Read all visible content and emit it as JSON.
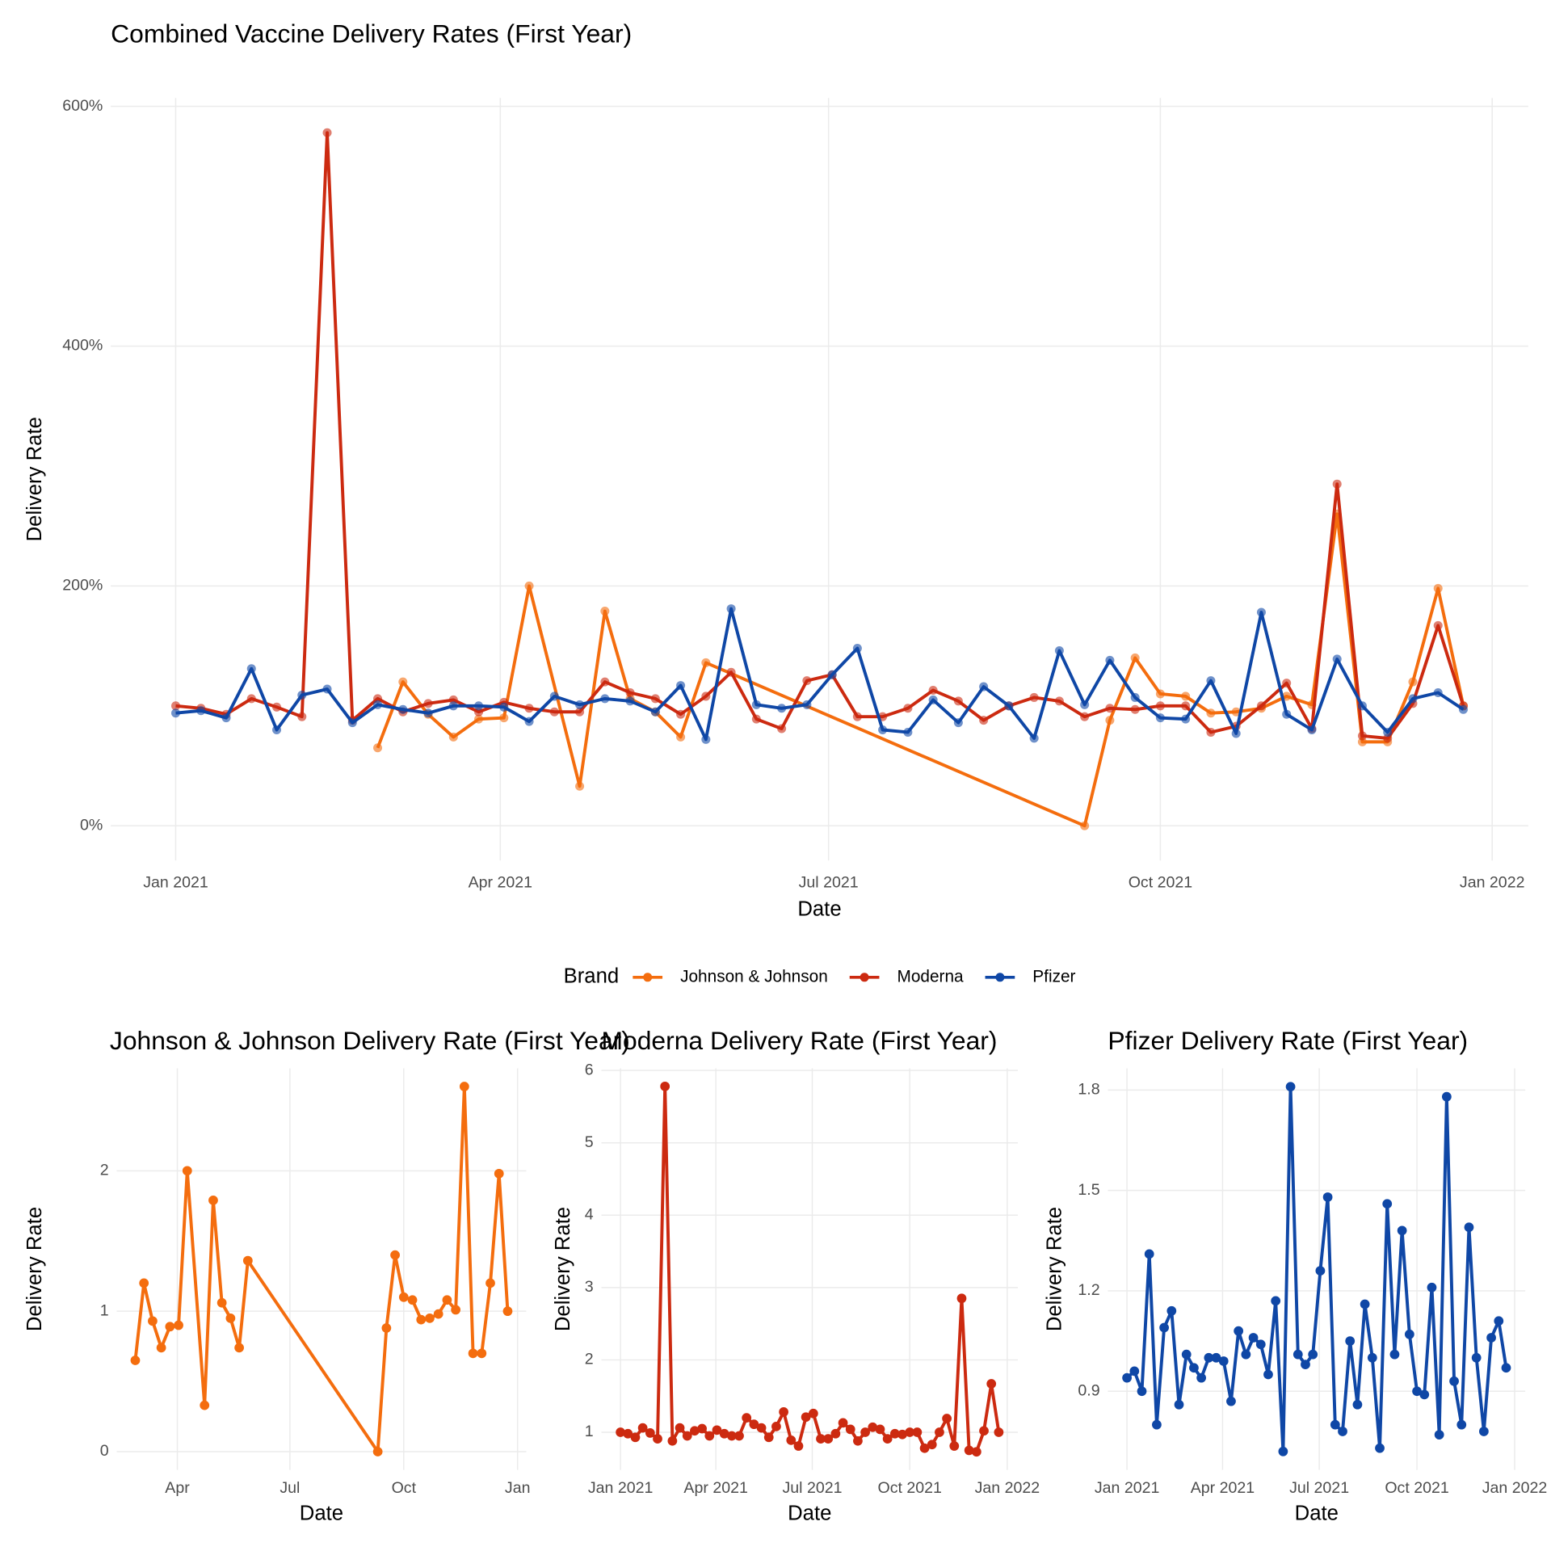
{
  "chart_data": [
    {
      "type": "line",
      "title": "Combined Vaccine Delivery Rates (First Year)",
      "x_label": "Date",
      "y_label": "Delivery Rate",
      "legend_title": "Brand",
      "legend": "bottom",
      "grid": true,
      "xlim": [
        "2020-12-14",
        "2022-01-11"
      ],
      "xticks": [
        {
          "value": "2021-01-01",
          "label": "Jan 2021"
        },
        {
          "value": "2021-04-01",
          "label": "Apr 2021"
        },
        {
          "value": "2021-07-01",
          "label": "Jul 2021"
        },
        {
          "value": "2021-10-01",
          "label": "Oct 2021"
        },
        {
          "value": "2022-01-01",
          "label": "Jan 2022"
        }
      ],
      "ylim": [
        -29,
        607
      ],
      "yticks": [
        {
          "value": 0,
          "label": "0%"
        },
        {
          "value": 200,
          "label": "200%"
        },
        {
          "value": 400,
          "label": "400%"
        },
        {
          "value": 600,
          "label": "600%"
        }
      ],
      "x": [
        "2021-01-01",
        "2021-01-08",
        "2021-01-15",
        "2021-01-22",
        "2021-01-29",
        "2021-02-05",
        "2021-02-12",
        "2021-02-19",
        "2021-02-26",
        "2021-03-05",
        "2021-03-12",
        "2021-03-19",
        "2021-03-26",
        "2021-04-02",
        "2021-04-09",
        "2021-04-16",
        "2021-04-23",
        "2021-04-30",
        "2021-05-07",
        "2021-05-14",
        "2021-05-21",
        "2021-05-28",
        "2021-06-04",
        "2021-06-11",
        "2021-06-18",
        "2021-06-25",
        "2021-07-02",
        "2021-07-09",
        "2021-07-16",
        "2021-07-23",
        "2021-07-30",
        "2021-08-06",
        "2021-08-13",
        "2021-08-20",
        "2021-08-27",
        "2021-09-03",
        "2021-09-10",
        "2021-09-17",
        "2021-09-24",
        "2021-10-01",
        "2021-10-08",
        "2021-10-15",
        "2021-10-22",
        "2021-10-29",
        "2021-11-05",
        "2021-11-12",
        "2021-11-19",
        "2021-11-26",
        "2021-12-03",
        "2021-12-10",
        "2021-12-17",
        "2021-12-24"
      ],
      "series": [
        {
          "name": "Johnson & Johnson",
          "color": "#f46d0e",
          "x": [
            "2021-02-26",
            "2021-03-05",
            "2021-03-12",
            "2021-03-19",
            "2021-03-26",
            "2021-04-02",
            "2021-04-09",
            "2021-04-23",
            "2021-04-30",
            "2021-05-07",
            "2021-05-14",
            "2021-05-21",
            "2021-05-28",
            "2021-09-10",
            "2021-09-17",
            "2021-09-24",
            "2021-10-01",
            "2021-10-08",
            "2021-10-15",
            "2021-10-22",
            "2021-10-29",
            "2021-11-05",
            "2021-11-12",
            "2021-11-19",
            "2021-11-26",
            "2021-12-03",
            "2021-12-10",
            "2021-12-17",
            "2021-12-24"
          ],
          "values": [
            65,
            120,
            93,
            74,
            89,
            90,
            200,
            33,
            179,
            106,
            95,
            74,
            136,
            0,
            88,
            140,
            110,
            108,
            94,
            95,
            98,
            108,
            101,
            260,
            70,
            70,
            120,
            198,
            100
          ]
        },
        {
          "name": "Moderna",
          "color": "#cc2a10",
          "values": [
            100,
            98,
            93,
            106,
            99,
            91,
            578,
            88,
            106,
            95,
            102,
            105,
            95,
            103,
            98,
            95,
            95,
            120,
            111,
            106,
            93,
            108,
            128,
            89,
            81,
            121,
            126,
            91,
            91,
            98,
            113,
            104,
            88,
            100,
            107,
            104,
            91,
            98,
            97,
            100,
            100,
            78,
            83,
            100,
            119,
            81,
            285,
            75,
            73,
            102,
            167,
            100
          ]
        },
        {
          "name": "Pfizer",
          "color": "#0f47a6",
          "values": [
            94,
            96,
            90,
            131,
            80,
            109,
            114,
            86,
            101,
            97,
            94,
            100,
            100,
            99,
            87,
            108,
            101,
            106,
            104,
            95,
            117,
            72,
            181,
            101,
            98,
            101,
            126,
            148,
            80,
            78,
            105,
            86,
            116,
            100,
            73,
            146,
            101,
            138,
            107,
            90,
            89,
            121,
            77,
            178,
            93,
            80,
            139,
            100,
            78,
            106,
            111,
            97
          ]
        }
      ]
    },
    {
      "type": "line",
      "title": "Johnson & Johnson Delivery Rate (First Year)",
      "x_label": "Date",
      "y_label": "Delivery Rate",
      "color": "#f46d0e",
      "grid": true,
      "xlim": [
        "2021-02-11",
        "2022-01-08"
      ],
      "xticks": [
        {
          "value": "2021-04-01",
          "label": "Apr"
        },
        {
          "value": "2021-07-01",
          "label": "Jul"
        },
        {
          "value": "2021-10-01",
          "label": "Oct"
        },
        {
          "value": "2022-01-01",
          "label": "Jan"
        }
      ],
      "ylim": [
        -0.13,
        2.73
      ],
      "yticks": [
        0,
        1,
        2
      ],
      "x": [
        "2021-02-26",
        "2021-03-05",
        "2021-03-12",
        "2021-03-19",
        "2021-03-26",
        "2021-04-02",
        "2021-04-09",
        "2021-04-23",
        "2021-04-30",
        "2021-05-07",
        "2021-05-14",
        "2021-05-21",
        "2021-05-28",
        "2021-09-10",
        "2021-09-17",
        "2021-09-24",
        "2021-10-01",
        "2021-10-08",
        "2021-10-15",
        "2021-10-22",
        "2021-10-29",
        "2021-11-05",
        "2021-11-12",
        "2021-11-19",
        "2021-11-26",
        "2021-12-03",
        "2021-12-10",
        "2021-12-17",
        "2021-12-24"
      ],
      "values": [
        0.65,
        1.2,
        0.93,
        0.74,
        0.89,
        0.9,
        2.0,
        0.33,
        1.79,
        1.06,
        0.95,
        0.74,
        1.36,
        0,
        0.88,
        1.4,
        1.1,
        1.08,
        0.94,
        0.95,
        0.98,
        1.08,
        1.01,
        2.6,
        0.7,
        0.7,
        1.2,
        1.98,
        1.0
      ]
    },
    {
      "type": "line",
      "title": "Moderna Delivery Rate (First Year)",
      "x_label": "Date",
      "y_label": "Delivery Rate",
      "color": "#cc2a10",
      "grid": true,
      "xlim": [
        "2020-12-14",
        "2022-01-11"
      ],
      "xticks": [
        {
          "value": "2021-01-01",
          "label": "Jan 2021"
        },
        {
          "value": "2021-04-01",
          "label": "Apr 2021"
        },
        {
          "value": "2021-07-01",
          "label": "Jul 2021"
        },
        {
          "value": "2021-10-01",
          "label": "Oct 2021"
        },
        {
          "value": "2022-01-01",
          "label": "Jan 2022"
        }
      ],
      "ylim": [
        0.48,
        6.03
      ],
      "yticks": [
        1,
        2,
        3,
        4,
        5,
        6
      ],
      "x": [
        "2021-01-01",
        "2021-01-08",
        "2021-01-15",
        "2021-01-22",
        "2021-01-29",
        "2021-02-05",
        "2021-02-12",
        "2021-02-19",
        "2021-02-26",
        "2021-03-05",
        "2021-03-12",
        "2021-03-19",
        "2021-03-26",
        "2021-04-02",
        "2021-04-09",
        "2021-04-16",
        "2021-04-23",
        "2021-04-30",
        "2021-05-07",
        "2021-05-14",
        "2021-05-21",
        "2021-05-28",
        "2021-06-04",
        "2021-06-11",
        "2021-06-18",
        "2021-06-25",
        "2021-07-02",
        "2021-07-09",
        "2021-07-16",
        "2021-07-23",
        "2021-07-30",
        "2021-08-06",
        "2021-08-13",
        "2021-08-20",
        "2021-08-27",
        "2021-09-03",
        "2021-09-10",
        "2021-09-17",
        "2021-09-24",
        "2021-10-01",
        "2021-10-08",
        "2021-10-15",
        "2021-10-22",
        "2021-10-29",
        "2021-11-05",
        "2021-11-12",
        "2021-11-19",
        "2021-11-26",
        "2021-12-03",
        "2021-12-10",
        "2021-12-17",
        "2021-12-24"
      ],
      "values": [
        1.0,
        0.98,
        0.93,
        1.06,
        0.99,
        0.91,
        5.78,
        0.88,
        1.06,
        0.95,
        1.02,
        1.05,
        0.95,
        1.03,
        0.98,
        0.95,
        0.95,
        1.2,
        1.11,
        1.06,
        0.93,
        1.08,
        1.28,
        0.89,
        0.81,
        1.21,
        1.26,
        0.91,
        0.91,
        0.98,
        1.13,
        1.04,
        0.88,
        1.0,
        1.07,
        1.04,
        0.91,
        0.98,
        0.97,
        1.0,
        1.0,
        0.78,
        0.83,
        1.0,
        1.19,
        0.81,
        2.85,
        0.75,
        0.73,
        1.02,
        1.67,
        1.0
      ]
    },
    {
      "type": "line",
      "title": "Pfizer Delivery Rate (First Year)",
      "x_label": "Date",
      "y_label": "Delivery Rate",
      "color": "#0f47a6",
      "grid": true,
      "xlim": [
        "2020-12-14",
        "2022-01-11"
      ],
      "xticks": [
        {
          "value": "2021-01-01",
          "label": "Jan 2021"
        },
        {
          "value": "2021-04-01",
          "label": "Apr 2021"
        },
        {
          "value": "2021-07-01",
          "label": "Jul 2021"
        },
        {
          "value": "2021-10-01",
          "label": "Oct 2021"
        },
        {
          "value": "2022-01-01",
          "label": "Jan 2022"
        }
      ],
      "ylim": [
        0.665,
        1.865
      ],
      "yticks": [
        0.9,
        1.2,
        1.5,
        1.8
      ],
      "x": [
        "2021-01-01",
        "2021-01-08",
        "2021-01-15",
        "2021-01-22",
        "2021-01-29",
        "2021-02-05",
        "2021-02-12",
        "2021-02-19",
        "2021-02-26",
        "2021-03-05",
        "2021-03-12",
        "2021-03-19",
        "2021-03-26",
        "2021-04-02",
        "2021-04-09",
        "2021-04-16",
        "2021-04-23",
        "2021-04-30",
        "2021-05-07",
        "2021-05-14",
        "2021-05-21",
        "2021-05-28",
        "2021-06-04",
        "2021-06-11",
        "2021-06-18",
        "2021-06-25",
        "2021-07-02",
        "2021-07-09",
        "2021-07-16",
        "2021-07-23",
        "2021-07-30",
        "2021-08-06",
        "2021-08-13",
        "2021-08-20",
        "2021-08-27",
        "2021-09-03",
        "2021-09-10",
        "2021-09-17",
        "2021-09-24",
        "2021-10-01",
        "2021-10-08",
        "2021-10-15",
        "2021-10-22",
        "2021-10-29",
        "2021-11-05",
        "2021-11-12",
        "2021-11-19",
        "2021-11-26",
        "2021-12-03",
        "2021-12-10",
        "2021-12-17",
        "2021-12-24"
      ],
      "values": [
        0.94,
        0.96,
        0.9,
        1.31,
        0.8,
        1.09,
        1.14,
        0.86,
        1.01,
        0.97,
        0.94,
        1.0,
        1.0,
        0.99,
        0.87,
        1.08,
        1.01,
        1.06,
        1.04,
        0.95,
        1.17,
        0.72,
        1.81,
        1.01,
        0.98,
        1.01,
        1.26,
        1.48,
        0.8,
        0.78,
        1.05,
        0.86,
        1.16,
        1.0,
        0.73,
        1.46,
        1.01,
        1.38,
        1.07,
        0.9,
        0.89,
        1.21,
        0.77,
        1.78,
        0.93,
        0.8,
        1.39,
        1.0,
        0.78,
        1.06,
        1.11,
        0.97
      ]
    }
  ]
}
